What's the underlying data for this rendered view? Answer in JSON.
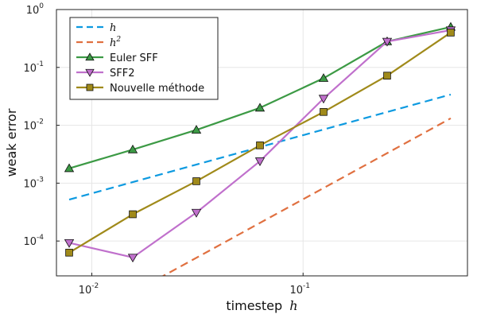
{
  "chart_data": {
    "type": "line",
    "xscale": "log10",
    "yscale": "log10",
    "xlim": [
      0.0068,
      0.6
    ],
    "ylim": [
      2.5e-05,
      1.0
    ],
    "xlabel": "timestep h",
    "ylabel": "weak error",
    "xlabel_prefix": "timestep",
    "xlabel_var": "h",
    "grid": true,
    "legend_position": "top-left",
    "x_ticks": [
      {
        "value": 0.01,
        "base": "10",
        "exp": "-2"
      },
      {
        "value": 0.1,
        "base": "10",
        "exp": "-1"
      }
    ],
    "y_ticks": [
      {
        "value": 0.0001,
        "base": "10",
        "exp": "-4"
      },
      {
        "value": 0.001,
        "base": "10",
        "exp": "-3"
      },
      {
        "value": 0.01,
        "base": "10",
        "exp": "-2"
      },
      {
        "value": 0.1,
        "base": "10",
        "exp": "-1"
      },
      {
        "value": 1,
        "base": "10",
        "exp": "0"
      }
    ],
    "series": [
      {
        "name": "h",
        "legend_base": "h",
        "legend_exp": "",
        "color": "#0d9ae0",
        "dash": "10,6",
        "marker": "none",
        "x": [
          0.0078125,
          0.5
        ],
        "y": [
          0.00052,
          0.034
        ]
      },
      {
        "name": "h^2",
        "legend_base": "h",
        "legend_exp": "2",
        "color": "#e07040",
        "dash": "10,6",
        "marker": "none",
        "x": [
          0.0078125,
          0.5
        ],
        "y": [
          3.2e-06,
          0.0132
        ]
      },
      {
        "name": "Euler SFF",
        "legend_base": "Euler SFF",
        "legend_exp": "",
        "color": "#3c9a45",
        "dash": "",
        "marker": "triangle-up",
        "x": [
          0.0078125,
          0.015625,
          0.03125,
          0.0625,
          0.125,
          0.25,
          0.5
        ],
        "y": [
          0.0018,
          0.0038,
          0.0083,
          0.02,
          0.065,
          0.28,
          0.5
        ]
      },
      {
        "name": "SFF2",
        "legend_base": "SFF2",
        "legend_exp": "",
        "color": "#c070cc",
        "dash": "",
        "marker": "triangle-down",
        "x": [
          0.0078125,
          0.015625,
          0.03125,
          0.0625,
          0.125,
          0.25,
          0.5
        ],
        "y": [
          9.3e-05,
          5.2e-05,
          0.00031,
          0.0024,
          0.029,
          0.28,
          0.44
        ]
      },
      {
        "name": "Nouvelle méthode",
        "legend_base": "Nouvelle méthode",
        "legend_exp": "",
        "color": "#a08a1a",
        "dash": "",
        "marker": "square",
        "x": [
          0.0078125,
          0.015625,
          0.03125,
          0.0625,
          0.125,
          0.25,
          0.5
        ],
        "y": [
          6.3e-05,
          0.00029,
          0.00108,
          0.0045,
          0.017,
          0.072,
          0.4
        ]
      }
    ]
  }
}
